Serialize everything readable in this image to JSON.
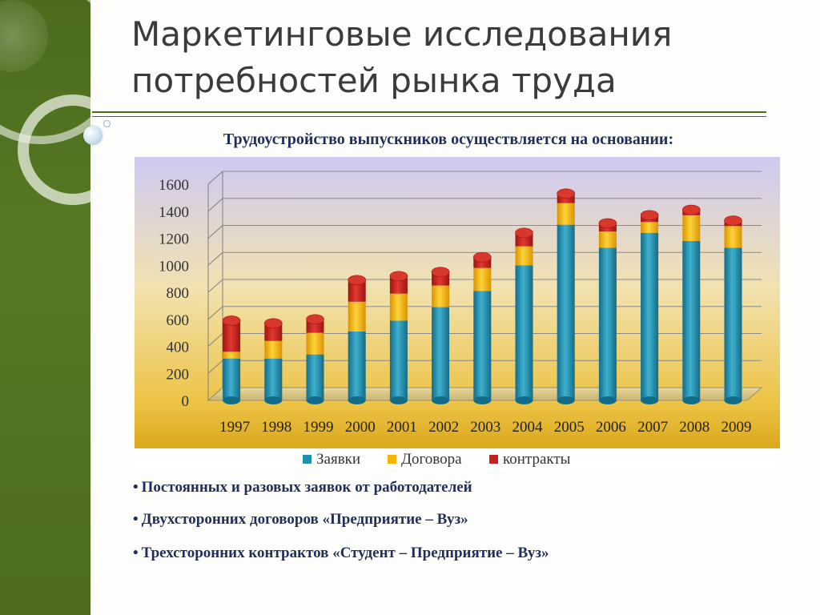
{
  "slide": {
    "title_line1": "Маркетинговые исследования",
    "title_line2": "потребностей рынка труда",
    "subtitle": "Трудоустройство выпускников осуществляется на основании:"
  },
  "colors": {
    "sidebar": "#4f6e20",
    "zayavki": "#1f8fad",
    "dogovora": "#f4b400",
    "kontrakty": "#c8201d",
    "text_dark": "#1f2f5a"
  },
  "bullets": [
    "Постоянных и разовых заявок от работодателей",
    "Двухсторонних договоров «Предприятие – Вуз»",
    "Трехсторонних контрактов «Студент – Предприятие – Вуз»"
  ],
  "bullet_marker": "•",
  "chart_data": {
    "type": "bar",
    "stacked": true,
    "categories": [
      "1997",
      "1998",
      "1999",
      "2000",
      "2001",
      "2002",
      "2003",
      "2004",
      "2005",
      "2006",
      "2007",
      "2008",
      "2009"
    ],
    "series": [
      {
        "name": "Заявки",
        "color": "#1f8fad",
        "values": [
          310,
          310,
          340,
          510,
          590,
          690,
          810,
          1000,
          1300,
          1130,
          1240,
          1180,
          1130
        ]
      },
      {
        "name": "Договора",
        "color": "#f4b400",
        "values": [
          50,
          130,
          160,
          220,
          200,
          160,
          170,
          140,
          160,
          120,
          80,
          190,
          160
        ]
      },
      {
        "name": "контракты",
        "color": "#c8201d",
        "values": [
          230,
          130,
          100,
          160,
          130,
          100,
          80,
          100,
          70,
          60,
          50,
          40,
          40
        ]
      }
    ],
    "ylim": [
      0,
      1600
    ],
    "yticks": [
      0,
      200,
      400,
      600,
      800,
      1000,
      1200,
      1400,
      1600
    ],
    "grid": true,
    "legend_position": "bottom"
  }
}
